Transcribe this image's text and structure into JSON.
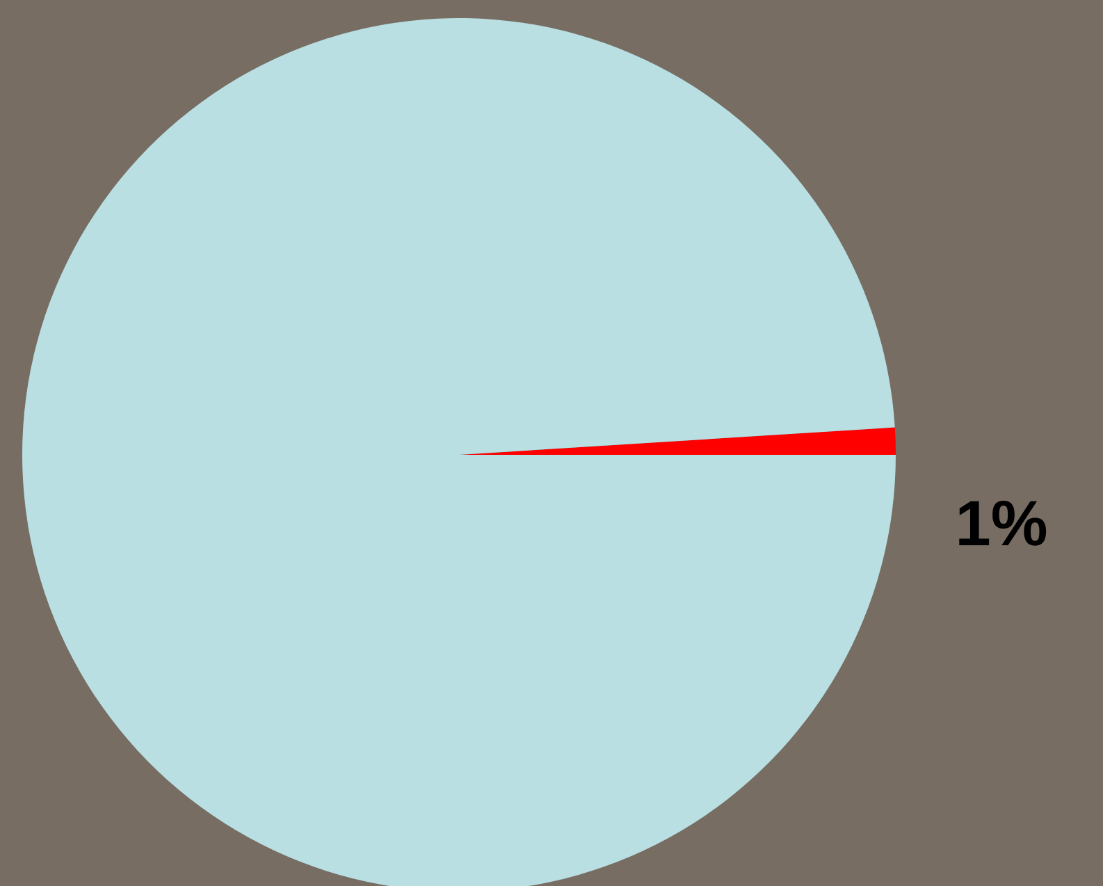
{
  "chart_data": {
    "type": "pie",
    "categories": [
      null,
      null
    ],
    "values": [
      1,
      99
    ],
    "colors": [
      "#ff0000",
      "#b9dfe3"
    ],
    "value_labels": [
      "1%",
      null
    ]
  }
}
